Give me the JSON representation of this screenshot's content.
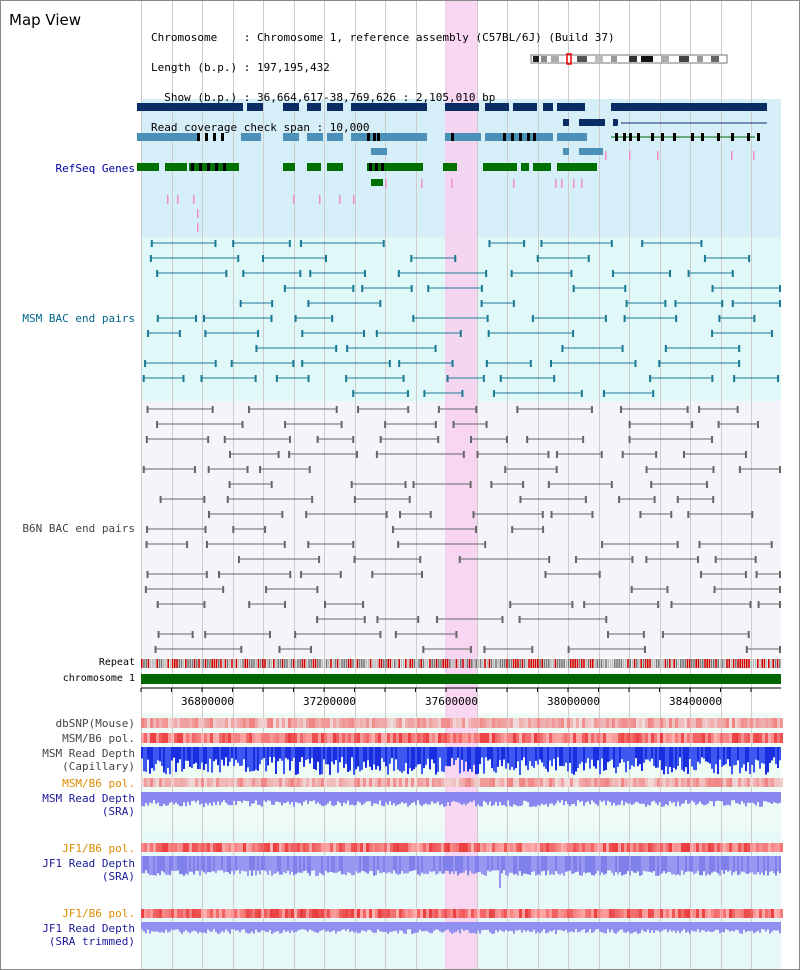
{
  "header": {
    "title": "Map View",
    "info_lines": [
      "Chromosome    : Chromosome 1, reference assembly (C57BL/6J) (Build 37)",
      "Length (b.p.) : 197,195,432",
      "  Show (b.p.) : 36,664,617-38,769,626 : 2,105,010 bp",
      "Read coverage check span : 10,000"
    ]
  },
  "tracks": {
    "refseq": "RefSeq Genes",
    "msm_bac": "MSM BAC end pairs",
    "b6n_bac": "B6N BAC end pairs",
    "repeat": "Repeat",
    "chromosome": "chromosome 1",
    "dbsnp": "dbSNP(Mouse)",
    "msm_b6_pol_1": "MSM/B6 pol.",
    "msm_depth_cap_1": "MSM Read Depth",
    "msm_depth_cap_2": "(Capillary)",
    "msm_b6_pol_2": "MSM/B6 pol.",
    "msm_depth_sra_1": "MSM Read Depth",
    "msm_depth_sra_2": "(SRA)",
    "jf1_pol_1": "JF1/B6 pol.",
    "jf1_depth_sra_1": "JF1 Read Depth",
    "jf1_depth_sra_2": "(SRA)",
    "jf1_pol_2": "JF1/B6 pol.",
    "jf1_depth_trim_1": "JF1 Read Depth",
    "jf1_depth_trim_2": "(SRA trimmed)"
  },
  "axis": {
    "ticks": [
      "36800000",
      "37200000",
      "37600000",
      "38000000",
      "38400000"
    ]
  },
  "colors": {
    "refseq_bg": "#d6eef8",
    "msm_bg": "#e0f8f8",
    "b6n_bg": "#f4f4fa",
    "highlight": "#f8d0f0",
    "gene_dark": "#0a2d66",
    "gene_mid": "#4a90b8",
    "gene_green": "#007000",
    "chromosome": "#006600"
  }
}
